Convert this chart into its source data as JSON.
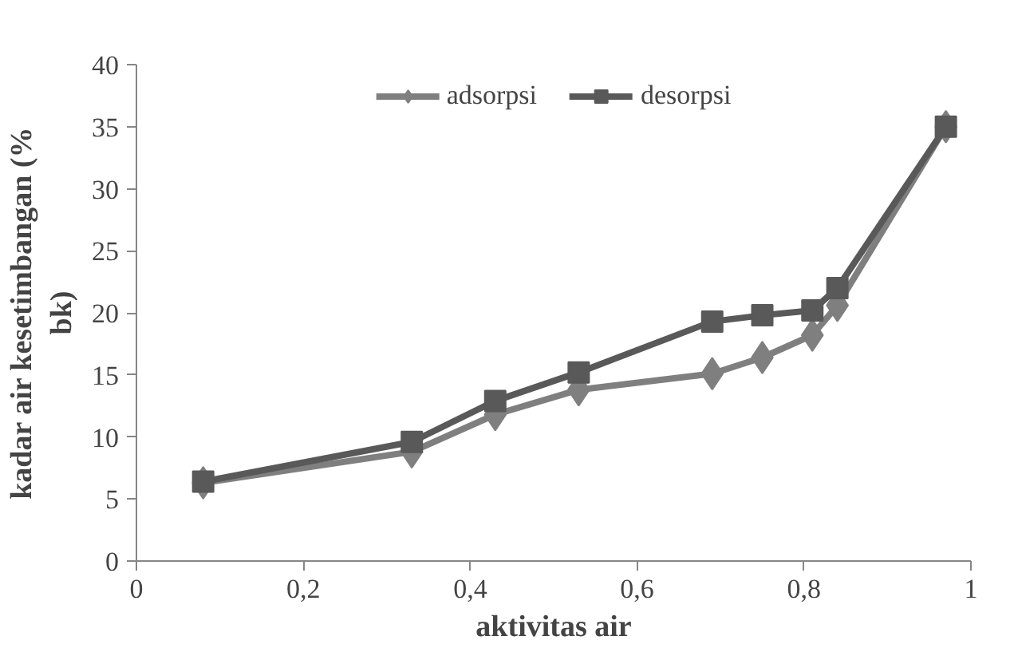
{
  "chart_data": {
    "type": "line",
    "xlabel": "aktivitas air",
    "ylabel": "kadar air kesetimbangan (%\nbk)",
    "xlim": [
      0,
      1
    ],
    "ylim": [
      0,
      40
    ],
    "xticks": [
      0,
      {
        "value": 0.2,
        "label": "0,2"
      },
      {
        "value": 0.4,
        "label": "0,4"
      },
      {
        "value": 0.6,
        "label": "0,6"
      },
      {
        "value": 0.8,
        "label": "0,8"
      },
      1
    ],
    "yticks": [
      0,
      5,
      10,
      15,
      20,
      25,
      30,
      35,
      40
    ],
    "grid": false,
    "legend": "top",
    "line_style": "solid",
    "series": [
      {
        "name": "adsorpsi",
        "color": "#7f7f7f",
        "marker": "diamond",
        "x": [
          0.08,
          0.33,
          0.43,
          0.53,
          0.69,
          0.75,
          0.81,
          0.84,
          0.97
        ],
        "values": [
          6.3,
          8.8,
          11.8,
          13.8,
          15.1,
          16.4,
          18.2,
          20.6,
          35
        ]
      },
      {
        "name": "desorpsi",
        "color": "#595959",
        "marker": "square",
        "x": [
          0.08,
          0.33,
          0.43,
          0.53,
          0.69,
          0.75,
          0.81,
          0.84,
          0.97
        ],
        "values": [
          6.4,
          9.6,
          12.9,
          15.2,
          19.3,
          19.8,
          20.2,
          22,
          35
        ]
      }
    ]
  }
}
